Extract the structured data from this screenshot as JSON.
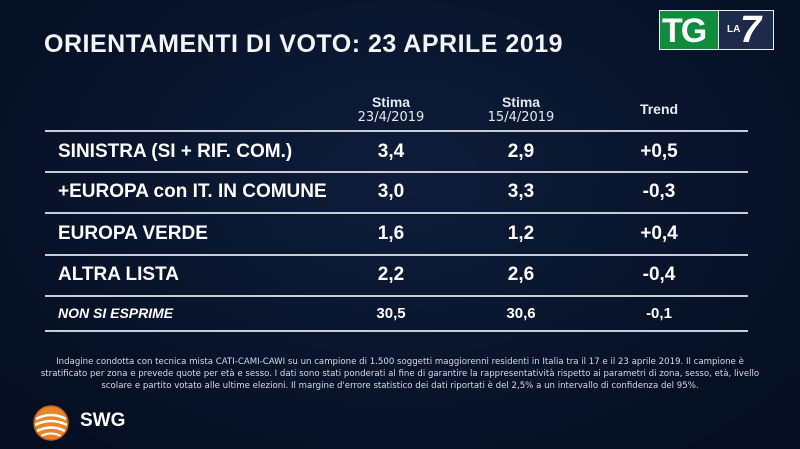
{
  "title": "ORIENTAMENTI DI VOTO: 23 APRILE 2019",
  "broadcaster": {
    "tg": "TG",
    "la": "LA",
    "seven": "7"
  },
  "columns": [
    {
      "line1": "Stima",
      "line2": "23/4/2019"
    },
    {
      "line1": "Stima",
      "line2": "15/4/2019"
    },
    {
      "line1": "Trend",
      "line2": ""
    }
  ],
  "rows": [
    {
      "party": "SINISTRA (SI + RIF. COM.)",
      "stima_23": "3,4",
      "stima_15": "2,9",
      "trend": "+0,5"
    },
    {
      "party": "+EUROPA con IT. IN COMUNE",
      "stima_23": "3,0",
      "stima_15": "3,3",
      "trend": "-0,3"
    },
    {
      "party": "EUROPA VERDE",
      "stima_23": "1,6",
      "stima_15": "1,2",
      "trend": "+0,4"
    },
    {
      "party": "ALTRA LISTA",
      "stima_23": "2,2",
      "stima_15": "2,6",
      "trend": "-0,4"
    },
    {
      "party": "NON SI ESPRIME",
      "stima_23": "30,5",
      "stima_15": "30,6",
      "trend": "-0,1"
    }
  ],
  "note": "Indagine condotta con tecnica mista CATI-CAMI-CAWI su un campione di 1.500 soggetti maggiorenni residenti in Italia tra il 17 e il 23 aprile 2019. Il campione è stratificato per zona e prevede quote per età e sesso. I dati sono stati ponderati al fine di garantire la rappresentatività rispetto ai parametri di zona, sesso, età, livello scolare e partito votato alle ultime elezioni. Il margine d'errore statistico dei dati riportati è del 2,5% a un intervallo di confidenza del 95%.",
  "source_brand": "SWG",
  "colors": {
    "background": "#08142b",
    "tg_green": "#0f8c3c",
    "swg_orange": "#e8842a",
    "divider": "#c7ccd6"
  }
}
